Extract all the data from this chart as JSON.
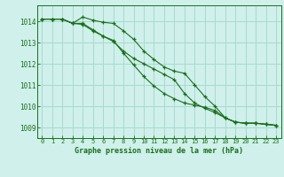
{
  "title": "Graphe pression niveau de la mer (hPa)",
  "background_color": "#cff0eb",
  "grid_color": "#aad8d0",
  "line_color": "#1a6e1a",
  "xlim": [
    -0.5,
    23.5
  ],
  "ylim": [
    1008.5,
    1014.75
  ],
  "yticks": [
    1009,
    1010,
    1011,
    1012,
    1013,
    1014
  ],
  "xticks": [
    0,
    1,
    2,
    3,
    4,
    5,
    6,
    7,
    8,
    9,
    10,
    11,
    12,
    13,
    14,
    15,
    16,
    17,
    18,
    19,
    20,
    21,
    22,
    23
  ],
  "series": [
    [
      1014.1,
      1014.1,
      1014.1,
      1013.9,
      1014.2,
      1014.05,
      1013.95,
      1013.9,
      1013.55,
      1013.15,
      1012.6,
      1012.2,
      1011.85,
      1011.65,
      1011.55,
      1011.0,
      1010.45,
      1010.0,
      1009.45,
      1009.25,
      1009.2,
      1009.2,
      1009.15,
      1009.1
    ],
    [
      1014.1,
      1014.1,
      1014.1,
      1013.9,
      1013.85,
      1013.55,
      1013.3,
      1013.05,
      1012.6,
      1012.25,
      1012.0,
      1011.75,
      1011.5,
      1011.25,
      1010.6,
      1010.15,
      1009.9,
      1009.7,
      1009.45,
      1009.25,
      1009.2,
      1009.2,
      1009.15,
      1009.1
    ],
    [
      1014.1,
      1014.1,
      1014.1,
      1013.9,
      1013.9,
      1013.6,
      1013.3,
      1013.1,
      1012.5,
      1011.95,
      1011.4,
      1010.95,
      1010.6,
      1010.35,
      1010.15,
      1010.05,
      1009.95,
      1009.8,
      1009.45,
      1009.25,
      1009.2,
      1009.2,
      1009.15,
      1009.1
    ]
  ]
}
